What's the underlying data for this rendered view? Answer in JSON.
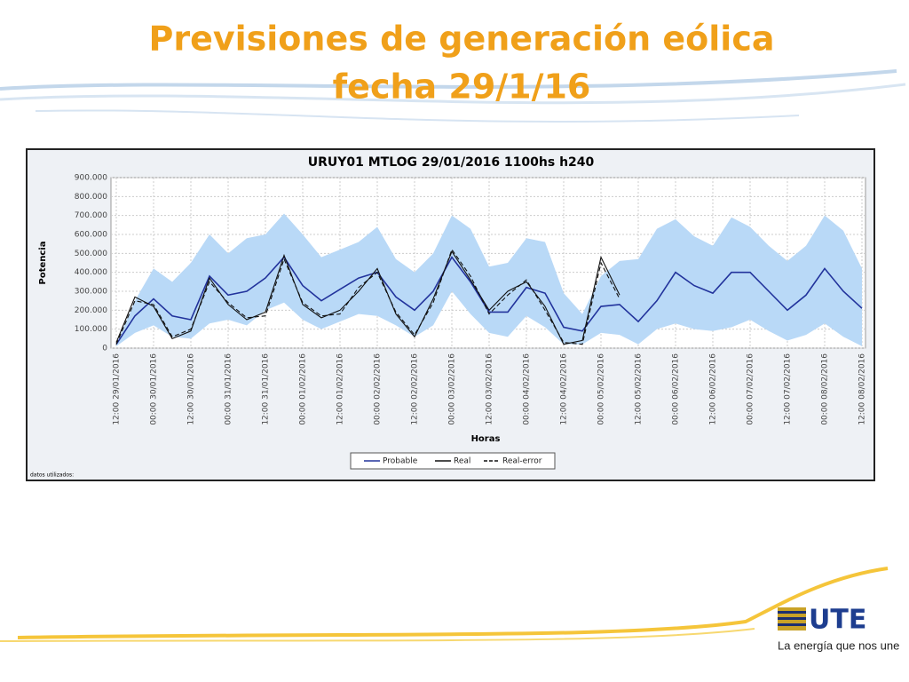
{
  "slide": {
    "title": [
      "Previsiones de generación eólica",
      "fecha 29/1/16"
    ],
    "logo": "UTE",
    "tagline": "La energía que nos une",
    "footnote": "datos utilizados:"
  },
  "chart_data": {
    "type": "line",
    "title": "URUY01  MTLOG  29/01/2016  1100hs   h240",
    "y_label": "Potencia",
    "x_label": "Horas",
    "categories": [
      "12:00 29/01/2016",
      null,
      "00:00 30/01/2016",
      null,
      "12:00 30/01/2016",
      null,
      "00:00 31/01/2016",
      null,
      "12:00 31/01/2016",
      null,
      "00:00 01/02/2016",
      null,
      "12:00 01/02/2016",
      null,
      "00:00 02/02/2016",
      null,
      "12:00 02/02/2016",
      null,
      "00:00 03/02/2016",
      null,
      "12:00 03/02/2016",
      null,
      "00:00 04/02/2016",
      null,
      "12:00 04/02/2016",
      null,
      "00:00 05/02/2016",
      null,
      "12:00 05/02/2016",
      null,
      "00:00 06/02/2016",
      null,
      "12:00 06/02/2016",
      null,
      "00:00 07/02/2016",
      null,
      "12:00 07/02/2016",
      null,
      "00:00 08/02/2016",
      null,
      "12:00 08/02/2016"
    ],
    "band": {
      "color": "#b9d9f7",
      "upper": [
        20000,
        250000,
        420000,
        350000,
        450000,
        600000,
        500000,
        580000,
        600000,
        710000,
        600000,
        480000,
        520000,
        560000,
        640000,
        470000,
        400000,
        500000,
        700000,
        630000,
        430000,
        450000,
        580000,
        560000,
        290000,
        180000,
        380000,
        460000,
        470000,
        630000,
        680000,
        590000,
        540000,
        690000,
        640000,
        540000,
        460000,
        540000,
        700000,
        620000,
        420000
      ],
      "lower": [
        10000,
        80000,
        120000,
        60000,
        50000,
        130000,
        150000,
        120000,
        200000,
        240000,
        150000,
        100000,
        140000,
        180000,
        170000,
        120000,
        60000,
        120000,
        300000,
        180000,
        80000,
        60000,
        170000,
        110000,
        20000,
        20000,
        80000,
        70000,
        20000,
        100000,
        130000,
        100000,
        90000,
        110000,
        150000,
        90000,
        40000,
        70000,
        130000,
        60000,
        10000
      ]
    },
    "series": [
      {
        "name": "Probable",
        "color": "#22339c",
        "dash": false,
        "values": [
          20000,
          170000,
          260000,
          170000,
          150000,
          380000,
          280000,
          300000,
          370000,
          480000,
          330000,
          250000,
          310000,
          370000,
          400000,
          270000,
          200000,
          300000,
          480000,
          350000,
          190000,
          190000,
          320000,
          290000,
          110000,
          90000,
          220000,
          230000,
          140000,
          250000,
          400000,
          330000,
          290000,
          400000,
          400000,
          300000,
          200000,
          280000,
          420000,
          300000,
          210000
        ]
      },
      {
        "name": "Real",
        "color": "#111111",
        "dash": false,
        "values": [
          30000,
          270000,
          220000,
          50000,
          90000,
          370000,
          230000,
          150000,
          190000,
          490000,
          230000,
          160000,
          200000,
          300000,
          420000,
          180000,
          60000,
          260000,
          510000,
          360000,
          200000,
          300000,
          350000,
          220000,
          20000,
          40000,
          480000,
          280000,
          null,
          null,
          null,
          null,
          null,
          null,
          null,
          null,
          null,
          null,
          null,
          null,
          null
        ]
      },
      {
        "name": "Real-error",
        "color": "#111111",
        "dash": true,
        "values": [
          20000,
          250000,
          230000,
          60000,
          100000,
          350000,
          240000,
          160000,
          170000,
          470000,
          240000,
          170000,
          180000,
          320000,
          400000,
          190000,
          70000,
          240000,
          520000,
          380000,
          180000,
          280000,
          360000,
          200000,
          30000,
          20000,
          450000,
          260000,
          null,
          null,
          null,
          null,
          null,
          null,
          null,
          null,
          null,
          null,
          null,
          null,
          null
        ]
      }
    ],
    "ylim": [
      0,
      900000
    ],
    "yticks": [
      0,
      {
        "value": 100000,
        "label": "100.000"
      },
      {
        "value": 200000,
        "label": "200.000"
      },
      {
        "value": 300000,
        "label": "300.000"
      },
      {
        "value": 400000,
        "label": "400.000"
      },
      {
        "value": 500000,
        "label": "500.000"
      },
      {
        "value": 600000,
        "label": "600.000"
      },
      {
        "value": 700000,
        "label": "700.000"
      },
      {
        "value": 800000,
        "label": "800.000"
      },
      {
        "value": 900000,
        "label": "900.000"
      }
    ],
    "grid": true
  }
}
